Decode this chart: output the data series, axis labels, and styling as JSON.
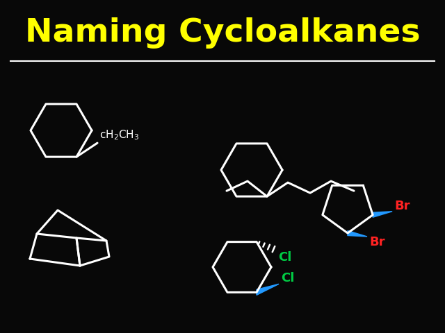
{
  "title": "Naming Cycloalkanes",
  "title_color": "#FFFF00",
  "title_fontsize": 34,
  "bg_color": "#080808",
  "line_color": "#FFFFFF",
  "line_width": 2.2,
  "substituent_color": "#00CC44",
  "br_color": "#FF2222",
  "wedge_color": "#2299FF",
  "cl_color": "#00CC44"
}
